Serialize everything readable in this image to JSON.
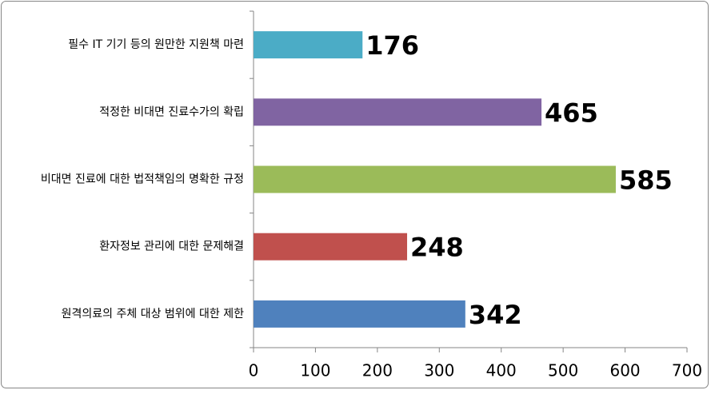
{
  "chart_data": {
    "type": "bar",
    "orientation": "horizontal",
    "categories": [
      "필수 IT 기기 등의 원만한 지원책 마련",
      "적정한 비대면 진료수가의 확립",
      "비대면 진료에 대한 법적책임의 명확한 규정",
      "환자정보 관리에 대한 문제해결",
      "원격의료의 주체 대상 범위에 대한 제한"
    ],
    "values": [
      176,
      465,
      585,
      248,
      342
    ],
    "colors": [
      "#4bacc6",
      "#8064a2",
      "#9bbb59",
      "#c0504d",
      "#4f81bd"
    ],
    "xlim": [
      0,
      700
    ],
    "xticks": [
      0,
      100,
      200,
      300,
      400,
      500,
      600,
      700
    ],
    "grid": false
  }
}
